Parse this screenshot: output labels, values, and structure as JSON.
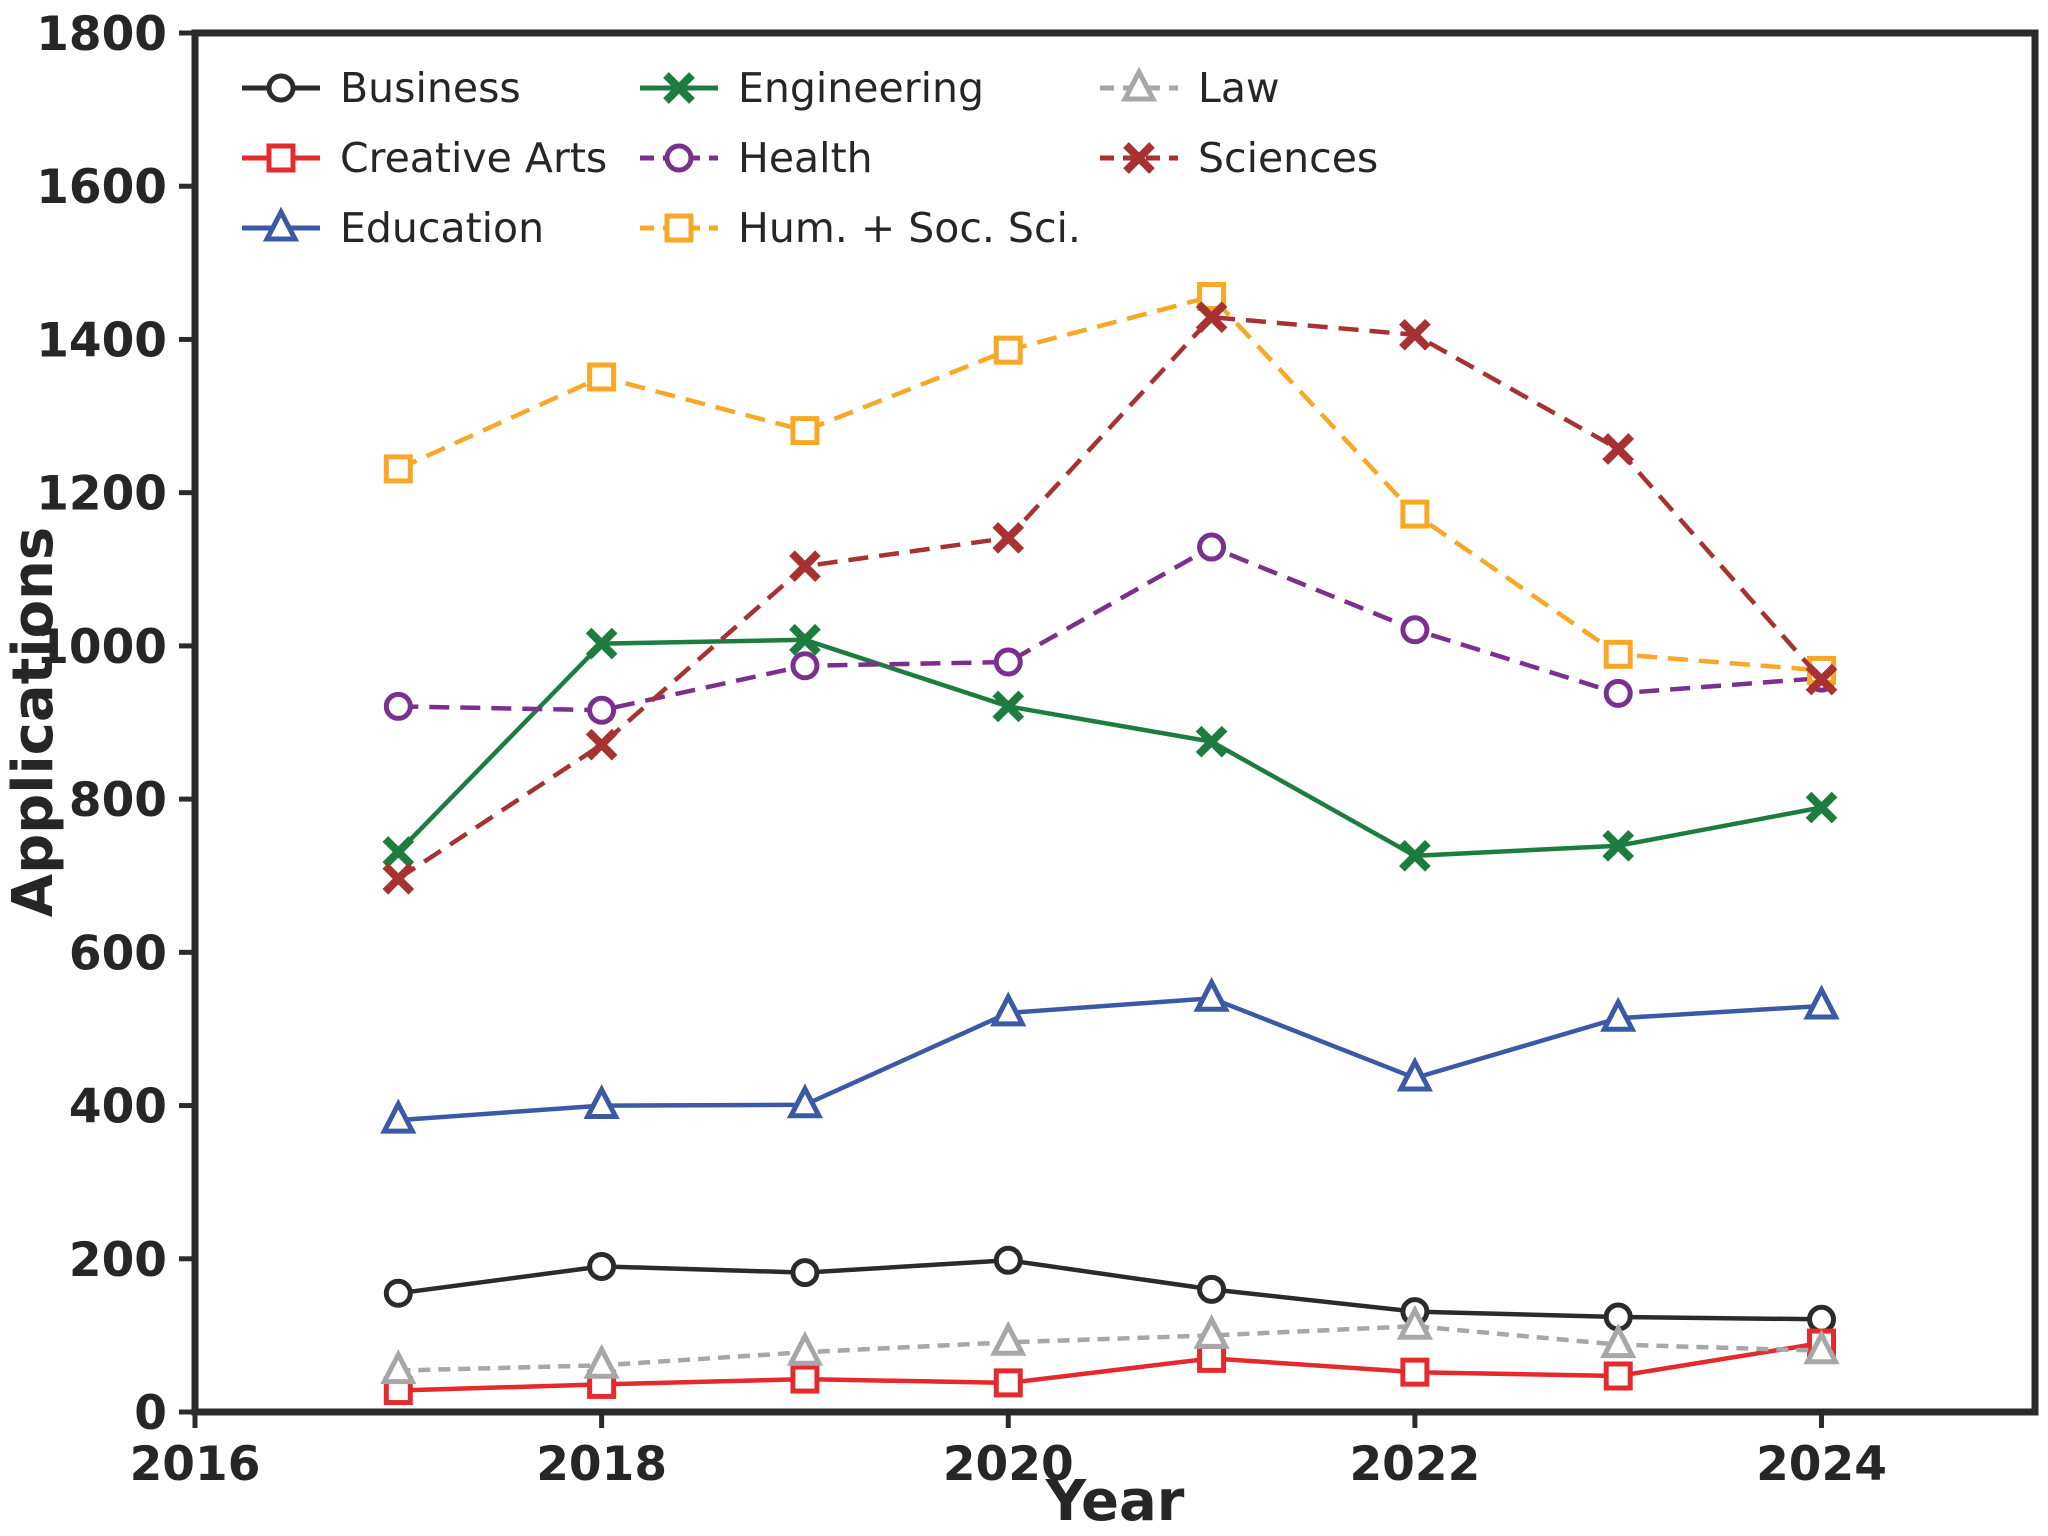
{
  "figure": {
    "background": "#ffffff",
    "axes_color": "#2b2b2b",
    "text_color": "#262626"
  },
  "chart_data": {
    "type": "line",
    "title": "",
    "xlabel": "Year",
    "ylabel": "Applications",
    "xlim": [
      2016,
      2025.05
    ],
    "ylim": [
      0,
      1800
    ],
    "xticks": [
      2016,
      2018,
      2020,
      2022,
      2024
    ],
    "yticks": [
      0,
      200,
      400,
      600,
      800,
      1000,
      1200,
      1400,
      1600,
      1800
    ],
    "grid": false,
    "legend_position": "upper left, inside axes, 3 columns, no frame",
    "x": [
      2017,
      2018,
      2019,
      2020,
      2021,
      2022,
      2023,
      2024
    ],
    "series": [
      {
        "name": "Business",
        "color": "#2b2b2b",
        "linestyle": "solid",
        "marker": "circle",
        "values": [
          155,
          190,
          182,
          198,
          160,
          131,
          124,
          121
        ]
      },
      {
        "name": "Creative Arts",
        "color": "#e42a2c",
        "linestyle": "solid",
        "marker": "square",
        "values": [
          28,
          36,
          43,
          38,
          70,
          52,
          47,
          90
        ]
      },
      {
        "name": "Education",
        "color": "#3c59a5",
        "linestyle": "solid",
        "marker": "triangle",
        "values": [
          381,
          400,
          401,
          521,
          540,
          436,
          514,
          530
        ]
      },
      {
        "name": "Engineering",
        "color": "#1d7d3f",
        "linestyle": "solid",
        "marker": "x",
        "values": [
          731,
          1003,
          1008,
          921,
          875,
          726,
          739,
          789
        ]
      },
      {
        "name": "Health",
        "color": "#7b2f8e",
        "linestyle": "dashed",
        "marker": "circle",
        "values": [
          921,
          916,
          974,
          979,
          1129,
          1021,
          938,
          958
        ]
      },
      {
        "name": "Hum. + Soc. Sci.",
        "color": "#f8a826",
        "linestyle": "dashed",
        "marker": "square",
        "values": [
          1231,
          1351,
          1281,
          1386,
          1456,
          1172,
          989,
          968
        ]
      },
      {
        "name": "Law",
        "color": "#a7a7a7",
        "linestyle": "dashed-fine",
        "marker": "triangle",
        "values": [
          54,
          61,
          78,
          91,
          100,
          112,
          88,
          80
        ]
      },
      {
        "name": "Sciences",
        "color": "#a83232",
        "linestyle": "dashed",
        "marker": "x",
        "values": [
          696,
          871,
          1104,
          1141,
          1429,
          1406,
          1257,
          956
        ]
      }
    ],
    "legend_columns": [
      [
        "Business",
        "Creative Arts",
        "Education"
      ],
      [
        "Engineering",
        "Health",
        "Hum. + Soc. Sci."
      ],
      [
        "Law",
        "Sciences"
      ]
    ]
  }
}
